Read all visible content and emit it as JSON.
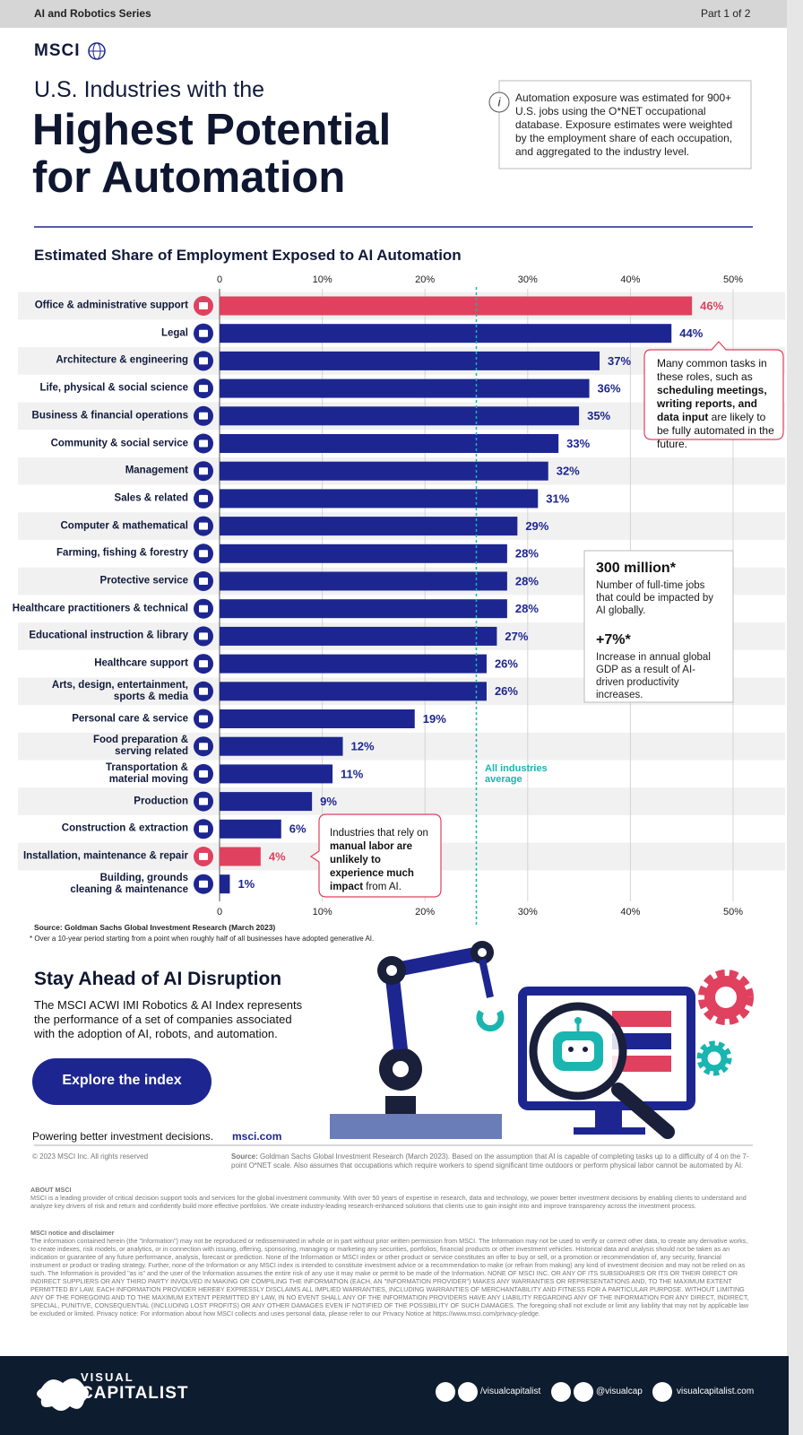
{
  "header": {
    "series": "AI and Robotics Series",
    "part": "Part 1 of 2",
    "brand": "MSCI",
    "title_line1": "U.S. Industries with the",
    "title_line2": "Highest Potential",
    "title_line3": "for Automation",
    "info": "Automation exposure was estimated for 900+ U.S. jobs using the O*NET occupational database. Exposure estimates were weighted by the employment share of each occupation, and aggregated to the industry level."
  },
  "chart_data": {
    "type": "bar",
    "orientation": "horizontal",
    "title": "Estimated Share of Employment Exposed to AI Automation",
    "categories": [
      "Office & administrative support",
      "Legal",
      "Architecture & engineering",
      "Life, physical & social science",
      "Business & financial operations",
      "Community & social service",
      "Management",
      "Sales & related",
      "Computer & mathematical",
      "Farming, fishing & forestry",
      "Protective service",
      "Healthcare practitioners & technical",
      "Educational instruction & library",
      "Healthcare support",
      "Arts, design, entertainment,\nsports & media",
      "Personal care & service",
      "Food preparation &\nserving related",
      "Transportation &\nmaterial moving",
      "Production",
      "Construction & extraction",
      "Installation, maintenance & repair",
      "Building, grounds\ncleaning & maintenance"
    ],
    "values": [
      46,
      44,
      37,
      36,
      35,
      33,
      32,
      31,
      29,
      28,
      28,
      28,
      27,
      26,
      26,
      19,
      12,
      11,
      9,
      6,
      4,
      1
    ],
    "value_labels": [
      "46%",
      "44%",
      "37%",
      "36%",
      "35%",
      "33%",
      "32%",
      "31%",
      "29%",
      "28%",
      "28%",
      "28%",
      "27%",
      "26%",
      "26%",
      "19%",
      "12%",
      "11%",
      "9%",
      "6%",
      "4%",
      "1%"
    ],
    "colors": [
      "#e0415f",
      "#1d2690",
      "#1d2690",
      "#1d2690",
      "#1d2690",
      "#1d2690",
      "#1d2690",
      "#1d2690",
      "#1d2690",
      "#1d2690",
      "#1d2690",
      "#1d2690",
      "#1d2690",
      "#1d2690",
      "#1d2690",
      "#1d2690",
      "#1d2690",
      "#1d2690",
      "#1d2690",
      "#1d2690",
      "#e0415f",
      "#1d2690"
    ],
    "xlim": [
      0,
      50
    ],
    "xticks": [
      0,
      {
        "value": 10,
        "label": "10%"
      },
      {
        "value": 20,
        "label": "20%"
      },
      {
        "value": 30,
        "label": "30%"
      },
      {
        "value": 40,
        "label": "40%"
      },
      {
        "value": 50,
        "label": "50%"
      }
    ],
    "grid": true,
    "average": 25,
    "average_label": "All industries average"
  },
  "callouts": {
    "tasks": [
      "Many common tasks in these roles, such as ",
      "scheduling meetings, writing reports, and data input",
      " are likely to be fully automated in the future."
    ],
    "stat1_value": "300 million*",
    "stat1_text": "Number of full-time jobs that could be impacted by AI globally.",
    "stat2_value": "+7%*",
    "stat2_text": "Increase in annual global GDP as a result of AI-driven productivity increases.",
    "manual": [
      "Industries that rely on ",
      "manual labor are unlikely to experience much impact",
      " from AI."
    ]
  },
  "notes": {
    "source": "Source: Goldman Sachs Global Investment Research (March 2023)",
    "footnote": "* Over a 10-year period starting from a point when roughly half of all businesses have adopted generative AI."
  },
  "promo": {
    "title": "Stay Ahead of AI Disruption",
    "text": "The MSCI ACWI IMI Robotics & AI Index represents the performance of a set of companies associated with the adoption of AI, robots, and automation.",
    "button": "Explore the index",
    "tagline": "Powering better investment decisions.",
    "url": "msci.com",
    "copyright": "© 2023 MSCI Inc. All rights reserved",
    "source_label": "Source:",
    "source_text": " Goldman Sachs Global Investment Research (March 2023). Based on the assumption that AI is capable of completing tasks up to a difficulty of 4 on the 7-point O*NET scale. Also assumes that occupations which require workers to spend significant time outdoors or perform physical labor cannot be automated by AI."
  },
  "legal": {
    "about_title": "ABOUT MSCI",
    "about_text": "MSCI is a leading provider of critical decision support tools and services for the global investment community. With over 50 years of expertise in research, data and technology, we power better investment decisions by enabling clients to understand and analyze key drivers of risk and return and confidently build more effective portfolios. We create industry-leading research-enhanced solutions that clients use to gain insight into and improve transparency across the investment process.",
    "notice_title": "MSCI notice and disclaimer",
    "notice_text": "The information contained herein (the \"Information\") may not be reproduced or redisseminated in whole or in part without prior written permission from MSCI. The Information may not be used to verify or correct other data, to create any derivative works, to create indexes, risk models, or analytics, or in connection with issuing, offering, sponsoring, managing or marketing any securities, portfolios, financial products or other investment vehicles. Historical data and analysis should not be taken as an indication or guarantee of any future performance, analysis, forecast or prediction. None of the Information or MSCI index or other product or service constitutes an offer to buy or sell, or a promotion or recommendation of, any security, financial instrument or product or trading strategy. Further, none of the Information or any MSCI index is intended to constitute investment advice or a recommendation to make (or refrain from making) any kind of investment decision and may not be relied on as such. The Information is provided \"as is\" and the user of the Information assumes the entire risk of any use it may make or permit to be made of the Information. NONE OF MSCI INC. OR ANY OF ITS SUBSIDIARIES OR ITS OR THEIR DIRECT OR INDIRECT SUPPLIERS OR ANY THIRD PARTY INVOLVED IN MAKING OR COMPILING THE INFORMATION (EACH, AN \"INFORMATION PROVIDER\") MAKES ANY WARRANTIES OR REPRESENTATIONS AND, TO THE MAXIMUM EXTENT PERMITTED BY LAW, EACH INFORMATION PROVIDER HEREBY EXPRESSLY DISCLAIMS ALL IMPLIED WARRANTIES, INCLUDING WARRANTIES OF MERCHANTABILITY AND FITNESS FOR A PARTICULAR PURPOSE. WITHOUT LIMITING ANY OF THE FOREGOING AND TO THE MAXIMUM EXTENT PERMITTED BY LAW, IN NO EVENT SHALL ANY OF THE INFORMATION PROVIDERS HAVE ANY LIABILITY REGARDING ANY OF THE INFORMATION FOR ANY DIRECT, INDIRECT, SPECIAL, PUNITIVE, CONSEQUENTIAL (INCLUDING LOST PROFITS) OR ANY OTHER DAMAGES EVEN IF NOTIFIED OF THE POSSIBILITY OF SUCH DAMAGES. The foregoing shall not exclude or limit any liability that may not by applicable law be excluded or limited. Privacy notice: For information about how MSCI collects and uses personal data, please refer to our Privacy Notice at https://www.msci.com/privacy-pledge."
  },
  "footer": {
    "logo_top": "VISUAL",
    "logo_bottom": "CAPITALIST",
    "social1": "/visualcapitalist",
    "social2": "@visualcap",
    "site": "visualcapitalist.com"
  }
}
